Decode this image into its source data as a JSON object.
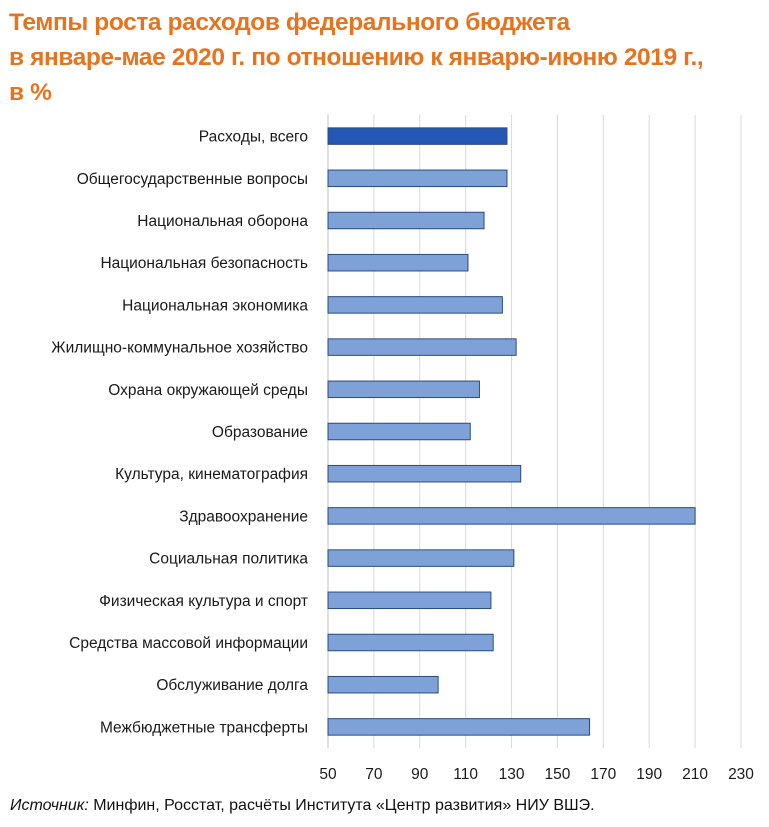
{
  "title": {
    "line1": "Темпы роста расходов федерального бюджета",
    "line2": "в январе-мае 2020 г. по отношению к январю-июню 2019 г.,",
    "line3": "в %"
  },
  "source": {
    "label": "Источник:",
    "text": " Минфин, Росстат, расчёты Института «Центр развития» НИУ ВШЭ."
  },
  "colors": {
    "title": "#E8731F",
    "bar": "#7EA2D8",
    "bar_highlight": "#2457B5",
    "bar_border": "#2B4A7E",
    "grid": "#D9D9D9"
  },
  "chart_data": {
    "type": "bar",
    "orientation": "horizontal",
    "categories": [
      "Расходы, всего",
      "Общегосударственные вопросы",
      "Национальная оборона",
      "Национальная безопасность",
      "Национальная экономика",
      "Жилищно-коммунальное хозяйство",
      "Охрана окружающей среды",
      "Образование",
      "Культура, кинематография",
      "Здравоохранение",
      "Социальная политика",
      "Физическая культура и спорт",
      "Средства массовой информации",
      "Обслуживание  долга",
      "Межбюджетные трансферты"
    ],
    "values": [
      128,
      128,
      118,
      111,
      126,
      132,
      116,
      112,
      134,
      210,
      131,
      121,
      122,
      98,
      164
    ],
    "highlight_index": 0,
    "xlim": [
      50,
      230
    ],
    "xticks": [
      50,
      70,
      90,
      110,
      130,
      150,
      170,
      190,
      210,
      230
    ],
    "grid": true
  }
}
